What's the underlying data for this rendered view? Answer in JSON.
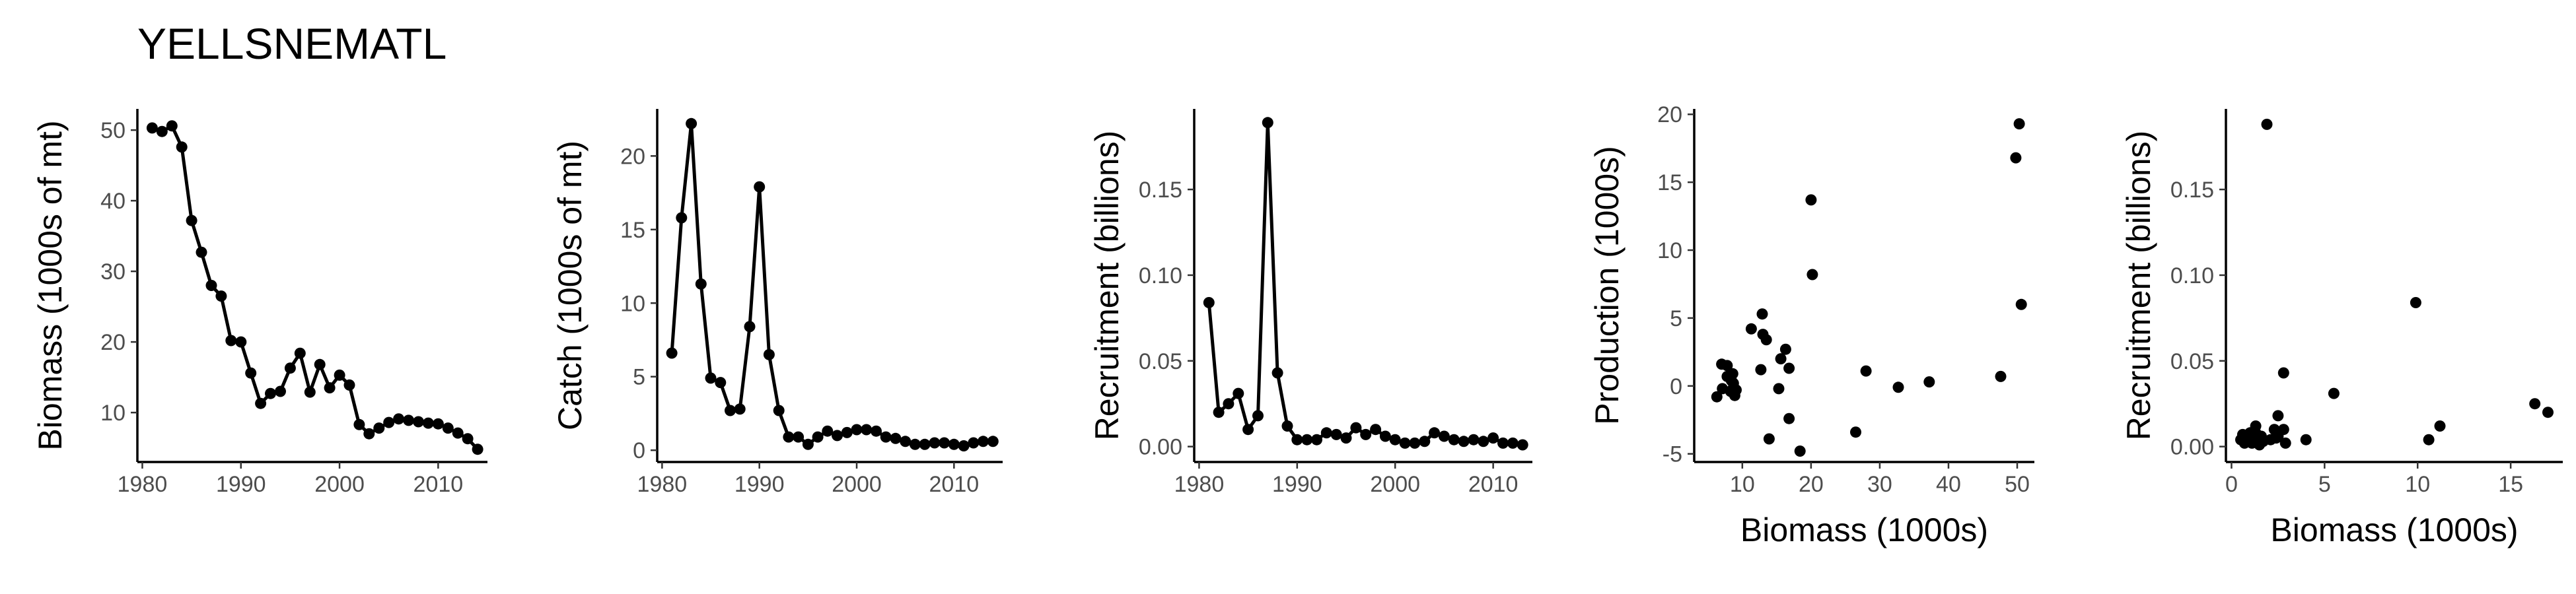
{
  "page": {
    "title": "YELLSNEMATL"
  },
  "chart_data": [
    {
      "type": "line",
      "xlabel": "",
      "ylabel": "Biomass (1000s of mt)",
      "xlim": [
        1979.5,
        2015
      ],
      "ylim": [
        3,
        53
      ],
      "xticks": [
        1980,
        1990,
        2000,
        2010
      ],
      "yticks": [
        10,
        20,
        30,
        40,
        50
      ],
      "x": [
        1981,
        1982,
        1983,
        1984,
        1985,
        1986,
        1987,
        1988,
        1989,
        1990,
        1991,
        1992,
        1993,
        1994,
        1995,
        1996,
        1997,
        1998,
        1999,
        2000,
        2001,
        2002,
        2003,
        2004,
        2005,
        2006,
        2007,
        2008,
        2009,
        2010,
        2011,
        2012,
        2013,
        2014
      ],
      "y": [
        50.3,
        49.8,
        50.6,
        47.6,
        37.2,
        32.7,
        28.0,
        26.5,
        20.2,
        20.0,
        15.6,
        11.3,
        12.7,
        13.0,
        16.3,
        18.4,
        12.9,
        16.8,
        13.5,
        15.3,
        13.9,
        8.3,
        7.0,
        7.8,
        8.6,
        9.1,
        8.9,
        8.7,
        8.5,
        8.4,
        7.8,
        7.1,
        6.3,
        4.8
      ]
    },
    {
      "type": "line",
      "xlabel": "",
      "ylabel": "Catch (1000s of mt)",
      "xlim": [
        1979.5,
        2015
      ],
      "ylim": [
        -0.8,
        23.2
      ],
      "xticks": [
        1980,
        1990,
        2000,
        2010
      ],
      "yticks": [
        0,
        5,
        10,
        15,
        20
      ],
      "x": [
        1981,
        1982,
        1983,
        1984,
        1985,
        1986,
        1987,
        1988,
        1989,
        1990,
        1991,
        1992,
        1993,
        1994,
        1995,
        1996,
        1997,
        1998,
        1999,
        2000,
        2001,
        2002,
        2003,
        2004,
        2005,
        2006,
        2007,
        2008,
        2009,
        2010,
        2011,
        2012,
        2013,
        2014
      ],
      "y": [
        6.6,
        15.8,
        22.2,
        11.3,
        4.9,
        4.6,
        2.7,
        2.8,
        8.4,
        17.9,
        6.5,
        2.7,
        0.9,
        0.9,
        0.4,
        0.9,
        1.3,
        1.0,
        1.2,
        1.4,
        1.4,
        1.3,
        0.9,
        0.8,
        0.6,
        0.4,
        0.4,
        0.5,
        0.5,
        0.4,
        0.3,
        0.5,
        0.6,
        0.6
      ]
    },
    {
      "type": "line",
      "xlabel": "",
      "ylabel": "Recruitment (billions)",
      "xlim": [
        1979.5,
        2014
      ],
      "ylim": [
        -0.009,
        0.197
      ],
      "xticks": [
        1980,
        1990,
        2000,
        2010
      ],
      "yticks": [
        0.0,
        0.05,
        0.1,
        0.15
      ],
      "ytick_labels": [
        "0.00",
        "0.05",
        "0.10",
        "0.15"
      ],
      "x": [
        1981,
        1982,
        1983,
        1984,
        1985,
        1986,
        1987,
        1988,
        1989,
        1990,
        1991,
        1992,
        1993,
        1994,
        1995,
        1996,
        1997,
        1998,
        1999,
        2000,
        2001,
        2002,
        2003,
        2004,
        2005,
        2006,
        2007,
        2008,
        2009,
        2010,
        2011,
        2012,
        2013
      ],
      "y": [
        0.084,
        0.02,
        0.025,
        0.031,
        0.01,
        0.018,
        0.189,
        0.043,
        0.012,
        0.004,
        0.004,
        0.004,
        0.008,
        0.007,
        0.005,
        0.011,
        0.007,
        0.01,
        0.006,
        0.004,
        0.002,
        0.002,
        0.003,
        0.008,
        0.006,
        0.004,
        0.003,
        0.004,
        0.003,
        0.005,
        0.002,
        0.002,
        0.001
      ]
    },
    {
      "type": "scatter",
      "xlabel": "Biomass (1000s)",
      "ylabel": "Production (1000s)",
      "xlim": [
        3,
        52.5
      ],
      "ylim": [
        -5.6,
        20.4
      ],
      "xticks": [
        10,
        20,
        30,
        40,
        50
      ],
      "yticks": [
        -5,
        0,
        5,
        10,
        15,
        20
      ],
      "x": [
        6.3,
        7.0,
        7.1,
        7.8,
        7.8,
        8.3,
        8.4,
        8.5,
        8.6,
        8.7,
        8.9,
        9.1,
        11.3,
        12.7,
        12.9,
        13.0,
        13.5,
        13.9,
        15.3,
        15.6,
        16.3,
        16.8,
        16.8,
        18.4,
        20.0,
        20.2,
        26.5,
        28.0,
        32.7,
        37.2,
        47.6,
        49.8,
        50.3,
        50.6
      ],
      "y": [
        -0.8,
        1.6,
        -0.2,
        1.5,
        0.7,
        -0.4,
        0.4,
        -0.3,
        0.9,
        0.2,
        -0.7,
        -0.3,
        4.2,
        1.2,
        5.3,
        3.8,
        3.4,
        -3.9,
        -0.2,
        2.0,
        2.7,
        1.3,
        -2.4,
        -4.8,
        13.7,
        8.2,
        -3.4,
        1.1,
        -0.1,
        0.3,
        0.7,
        16.8,
        19.3,
        6.0
      ]
    },
    {
      "type": "scatter",
      "xlabel": "Biomass (1000s)",
      "ylabel": "Recruitment (billions)",
      "xlim": [
        -0.3,
        17.8
      ],
      "ylim": [
        -0.009,
        0.197
      ],
      "xticks": [
        0,
        5,
        10,
        15
      ],
      "yticks": [
        0.0,
        0.05,
        0.1,
        0.15
      ],
      "ytick_labels": [
        "0.00",
        "0.05",
        "0.10",
        "0.15"
      ],
      "x": [
        0.5,
        0.6,
        0.7,
        0.8,
        0.9,
        1.0,
        1.0,
        1.1,
        1.2,
        1.3,
        1.3,
        1.4,
        1.5,
        1.6,
        1.7,
        1.9,
        2.1,
        2.3,
        2.4,
        2.5,
        2.8,
        2.8,
        2.9,
        4.0,
        5.5,
        9.9,
        10.6,
        11.2,
        16.3,
        17.0,
        2.5,
        1.5,
        0.9
      ],
      "y": [
        0.004,
        0.007,
        0.002,
        0.005,
        0.006,
        0.003,
        0.008,
        0.002,
        0.003,
        0.008,
        0.012,
        0.004,
        0.001,
        0.006,
        0.003,
        0.188,
        0.004,
        0.01,
        0.005,
        0.018,
        0.043,
        0.01,
        0.002,
        0.004,
        0.031,
        0.084,
        0.004,
        0.012,
        0.025,
        0.02,
        0.006,
        0.002,
        0.004
      ]
    }
  ]
}
